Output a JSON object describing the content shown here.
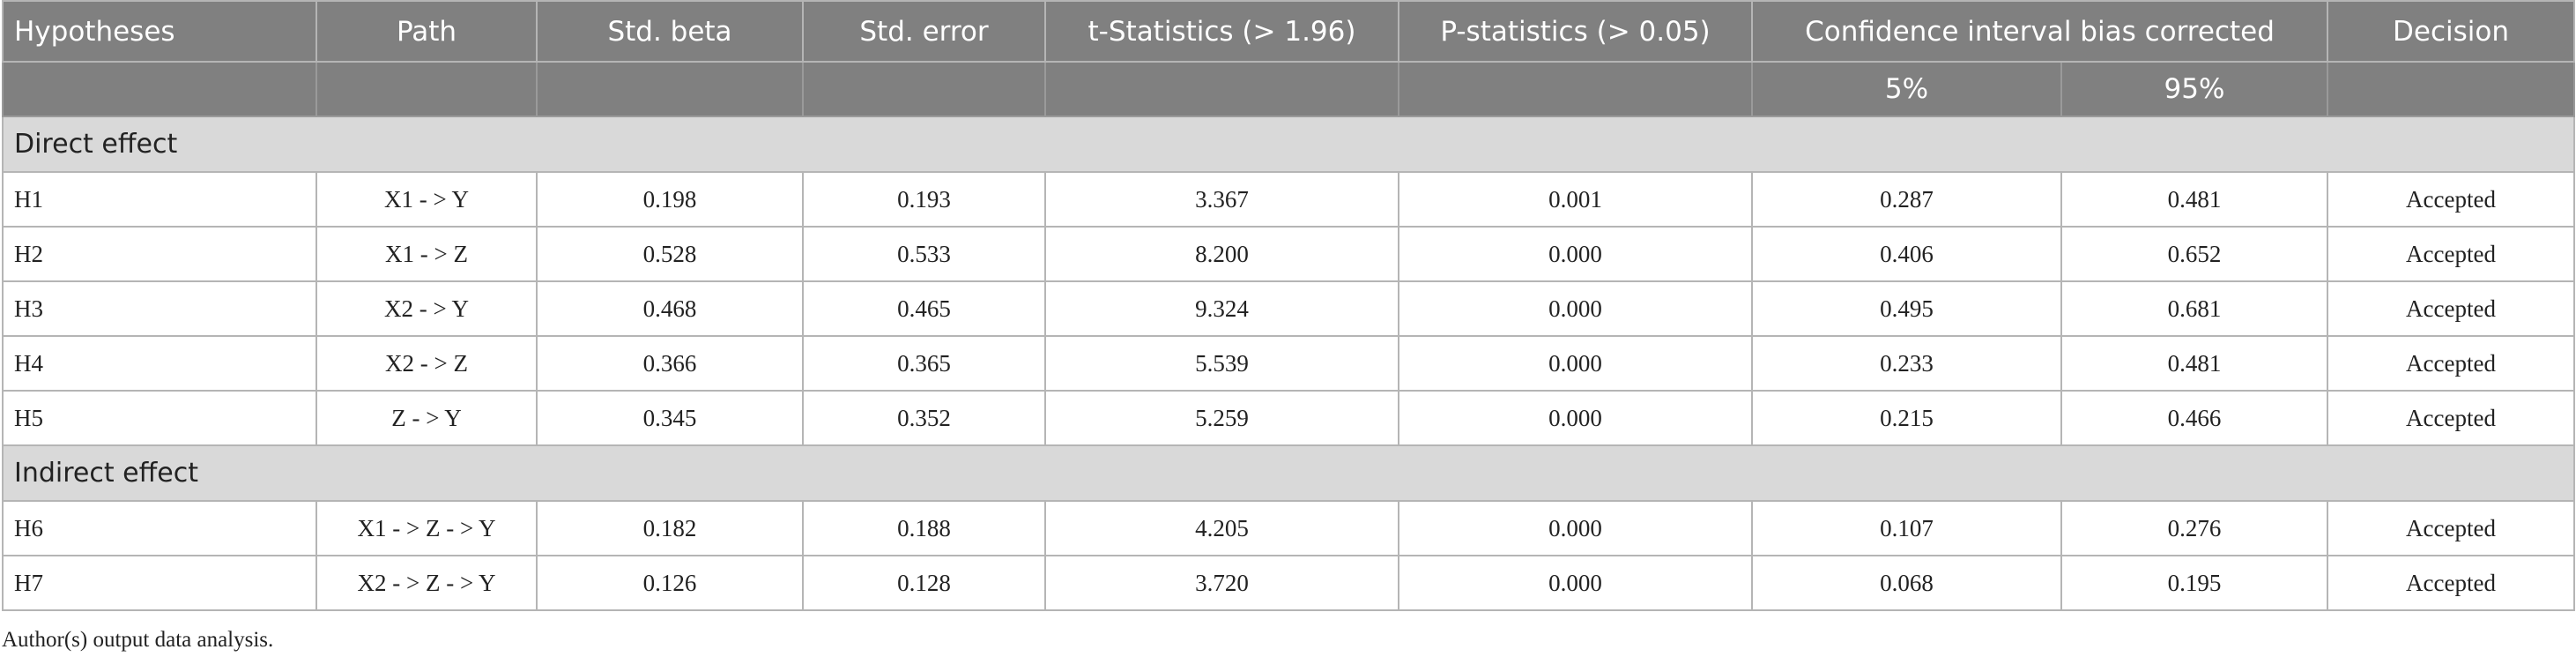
{
  "table": {
    "columns": [
      "Hypotheses",
      "Path",
      "Std. beta",
      "Std. error",
      "t-Statistics (> 1.96)",
      "P-statistics (> 0.05)",
      "Confidence interval bias corrected",
      "Decision"
    ],
    "subcolumns": [
      "5%",
      "95%"
    ],
    "sections": [
      {
        "title": "Direct effect",
        "rows": [
          [
            "H1",
            "X1 - > Y",
            "0.198",
            "0.193",
            "3.367",
            "0.001",
            "0.287",
            "0.481",
            "Accepted"
          ],
          [
            "H2",
            "X1 - > Z",
            "0.528",
            "0.533",
            "8.200",
            "0.000",
            "0.406",
            "0.652",
            "Accepted"
          ],
          [
            "H3",
            "X2 - > Y",
            "0.468",
            "0.465",
            "9.324",
            "0.000",
            "0.495",
            "0.681",
            "Accepted"
          ],
          [
            "H4",
            "X2 - > Z",
            "0.366",
            "0.365",
            "5.539",
            "0.000",
            "0.233",
            "0.481",
            "Accepted"
          ],
          [
            "H5",
            "Z - > Y",
            "0.345",
            "0.352",
            "5.259",
            "0.000",
            "0.215",
            "0.466",
            "Accepted"
          ]
        ]
      },
      {
        "title": "Indirect effect",
        "rows": [
          [
            "H6",
            "X1 - > Z - > Y",
            "0.182",
            "0.188",
            "4.205",
            "0.000",
            "0.107",
            "0.276",
            "Accepted"
          ],
          [
            "H7",
            "X2 - > Z - > Y",
            "0.126",
            "0.128",
            "3.720",
            "0.000",
            "0.068",
            "0.195",
            "Accepted"
          ]
        ]
      }
    ],
    "footnote": "Author(s) output data analysis."
  }
}
